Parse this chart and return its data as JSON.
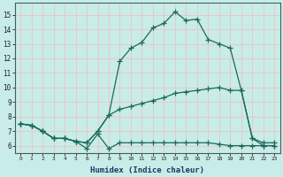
{
  "xlabel": "Humidex (Indice chaleur)",
  "bg_color": "#c8ece8",
  "grid_color": "#e8c8c8",
  "line_color": "#1a6b5a",
  "xlim": [
    -0.5,
    23.5
  ],
  "ylim": [
    5.5,
    15.8
  ],
  "xticks": [
    0,
    1,
    2,
    3,
    4,
    5,
    6,
    7,
    8,
    9,
    10,
    11,
    12,
    13,
    14,
    15,
    16,
    17,
    18,
    19,
    20,
    21,
    22,
    23
  ],
  "yticks": [
    6,
    7,
    8,
    9,
    10,
    11,
    12,
    13,
    14,
    15
  ],
  "x_top": [
    0,
    1,
    2,
    3,
    4,
    5,
    6,
    7,
    8,
    9,
    10,
    11,
    12,
    13,
    14,
    15,
    16,
    17,
    18,
    19,
    20,
    21,
    22,
    23
  ],
  "y_top": [
    7.5,
    7.4,
    7.0,
    6.5,
    6.5,
    6.3,
    6.2,
    7.0,
    8.1,
    11.8,
    12.7,
    13.1,
    14.1,
    14.4,
    15.2,
    14.6,
    14.7,
    13.3,
    13.0,
    12.7,
    9.8,
    6.5,
    6.0,
    6.0
  ],
  "x_mid": [
    0,
    1,
    2,
    3,
    4,
    5,
    6,
    7,
    8,
    9,
    10,
    11,
    12,
    13,
    14,
    15,
    16,
    17,
    18,
    19,
    20,
    21,
    22,
    23
  ],
  "y_mid": [
    7.5,
    7.4,
    7.0,
    6.5,
    6.5,
    6.3,
    6.2,
    7.0,
    8.1,
    8.5,
    8.7,
    8.9,
    9.1,
    9.3,
    9.6,
    9.7,
    9.8,
    9.9,
    10.0,
    9.8,
    9.8,
    6.5,
    6.2,
    6.2
  ],
  "x_bot": [
    0,
    1,
    2,
    3,
    4,
    5,
    6,
    7,
    8,
    9,
    10,
    11,
    12,
    13,
    14,
    15,
    16,
    17,
    18,
    19,
    20,
    21,
    22,
    23
  ],
  "y_bot": [
    7.5,
    7.4,
    7.0,
    6.5,
    6.5,
    6.3,
    5.8,
    6.8,
    5.8,
    6.2,
    6.2,
    6.2,
    6.2,
    6.2,
    6.2,
    6.2,
    6.2,
    6.2,
    6.1,
    6.0,
    6.0,
    6.0,
    6.0,
    6.0
  ]
}
